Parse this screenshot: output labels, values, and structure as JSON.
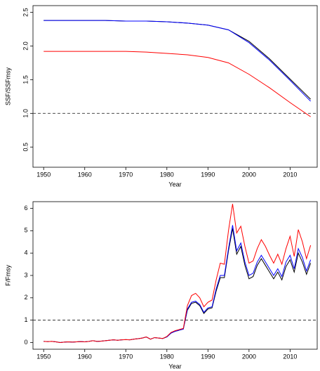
{
  "chart_data": [
    {
      "type": "line",
      "xlabel": "Year",
      "ylabel": "SSF/SSFmsy",
      "x": [
        1950,
        1955,
        1960,
        1965,
        1970,
        1975,
        1980,
        1985,
        1990,
        1995,
        2000,
        2005,
        2010,
        2015
      ],
      "series": [
        {
          "color": "#000000",
          "values": [
            2.38,
            2.38,
            2.38,
            2.38,
            2.37,
            2.37,
            2.36,
            2.34,
            2.31,
            2.24,
            2.07,
            1.81,
            1.51,
            1.21
          ]
        },
        {
          "color": "#0000ff",
          "values": [
            2.38,
            2.38,
            2.38,
            2.38,
            2.37,
            2.37,
            2.36,
            2.34,
            2.31,
            2.24,
            2.05,
            1.79,
            1.49,
            1.18
          ]
        },
        {
          "color": "#ff0000",
          "values": [
            1.92,
            1.92,
            1.92,
            1.92,
            1.92,
            1.91,
            1.89,
            1.87,
            1.83,
            1.75,
            1.58,
            1.38,
            1.16,
            0.95
          ]
        }
      ],
      "reference_line": 1,
      "xlim": [
        1947.4,
        2016.6
      ],
      "xticks": [
        1950,
        1960,
        1970,
        1980,
        1990,
        2000,
        2010
      ],
      "ylim": [
        0.2,
        2.6
      ],
      "yticks": [
        0.5,
        {
          "value": 1,
          "label": "1.0"
        },
        1.5,
        {
          "value": 2,
          "label": "2.0"
        },
        2.5
      ]
    },
    {
      "type": "line",
      "xlabel": "Year",
      "ylabel": "F/Fmsy",
      "x": [
        1950,
        1951,
        1952,
        1953,
        1954,
        1955,
        1956,
        1957,
        1958,
        1959,
        1960,
        1961,
        1962,
        1963,
        1964,
        1965,
        1966,
        1967,
        1968,
        1969,
        1970,
        1971,
        1972,
        1973,
        1974,
        1975,
        1976,
        1977,
        1978,
        1979,
        1980,
        1981,
        1982,
        1983,
        1984,
        1985,
        1986,
        1987,
        1988,
        1989,
        1990,
        1991,
        1992,
        1993,
        1994,
        1995,
        1996,
        1997,
        1998,
        1999,
        2000,
        2001,
        2002,
        2003,
        2004,
        2005,
        2006,
        2007,
        2008,
        2009,
        2010,
        2011,
        2012,
        2013,
        2014,
        2015
      ],
      "series": [
        {
          "color": "#000000",
          "values": [
            0.05,
            0.04,
            0.05,
            0.03,
            0.0,
            0.02,
            0.03,
            0.02,
            0.03,
            0.04,
            0.03,
            0.05,
            0.08,
            0.05,
            0.06,
            0.08,
            0.1,
            0.12,
            0.1,
            0.12,
            0.13,
            0.12,
            0.15,
            0.17,
            0.2,
            0.25,
            0.15,
            0.22,
            0.2,
            0.18,
            0.25,
            0.42,
            0.5,
            0.55,
            0.6,
            1.45,
            1.75,
            1.8,
            1.65,
            1.3,
            1.5,
            1.55,
            2.3,
            2.9,
            2.9,
            4.1,
            5.1,
            3.95,
            4.3,
            3.45,
            2.85,
            2.95,
            3.45,
            3.75,
            3.45,
            3.15,
            2.85,
            3.15,
            2.8,
            3.4,
            3.7,
            3.15,
            4.0,
            3.6,
            3.05,
            3.55
          ]
        },
        {
          "color": "#0000ff",
          "values": [
            0.05,
            0.04,
            0.05,
            0.03,
            0.0,
            0.02,
            0.03,
            0.02,
            0.03,
            0.04,
            0.03,
            0.05,
            0.08,
            0.05,
            0.06,
            0.08,
            0.1,
            0.12,
            0.1,
            0.12,
            0.13,
            0.12,
            0.15,
            0.17,
            0.2,
            0.25,
            0.15,
            0.22,
            0.2,
            0.18,
            0.25,
            0.42,
            0.5,
            0.55,
            0.6,
            1.5,
            1.8,
            1.85,
            1.7,
            1.35,
            1.55,
            1.6,
            2.4,
            3.0,
            3.0,
            4.2,
            5.25,
            4.1,
            4.45,
            3.6,
            3.0,
            3.1,
            3.6,
            3.9,
            3.6,
            3.3,
            3.0,
            3.3,
            2.95,
            3.6,
            3.9,
            3.3,
            4.2,
            3.8,
            3.2,
            3.7
          ]
        },
        {
          "color": "#ff0000",
          "values": [
            0.05,
            0.04,
            0.05,
            0.03,
            0.0,
            0.02,
            0.03,
            0.02,
            0.03,
            0.04,
            0.03,
            0.05,
            0.08,
            0.05,
            0.06,
            0.08,
            0.1,
            0.12,
            0.1,
            0.12,
            0.13,
            0.12,
            0.15,
            0.17,
            0.2,
            0.25,
            0.15,
            0.22,
            0.2,
            0.18,
            0.27,
            0.45,
            0.53,
            0.58,
            0.63,
            1.65,
            2.1,
            2.2,
            2.0,
            1.6,
            1.8,
            1.9,
            2.8,
            3.55,
            3.5,
            5.0,
            6.2,
            4.9,
            5.2,
            4.3,
            3.55,
            3.65,
            4.2,
            4.6,
            4.3,
            3.9,
            3.55,
            3.95,
            3.5,
            4.2,
            4.75,
            3.85,
            5.05,
            4.5,
            3.75,
            4.35
          ]
        }
      ],
      "reference_line": 1,
      "xlim": [
        1947.4,
        2016.6
      ],
      "xticks": [
        1950,
        1960,
        1970,
        1980,
        1990,
        2000,
        2010
      ],
      "ylim": [
        -0.3,
        6.3
      ],
      "yticks": [
        0,
        1,
        2,
        3,
        4,
        5,
        6
      ]
    }
  ]
}
